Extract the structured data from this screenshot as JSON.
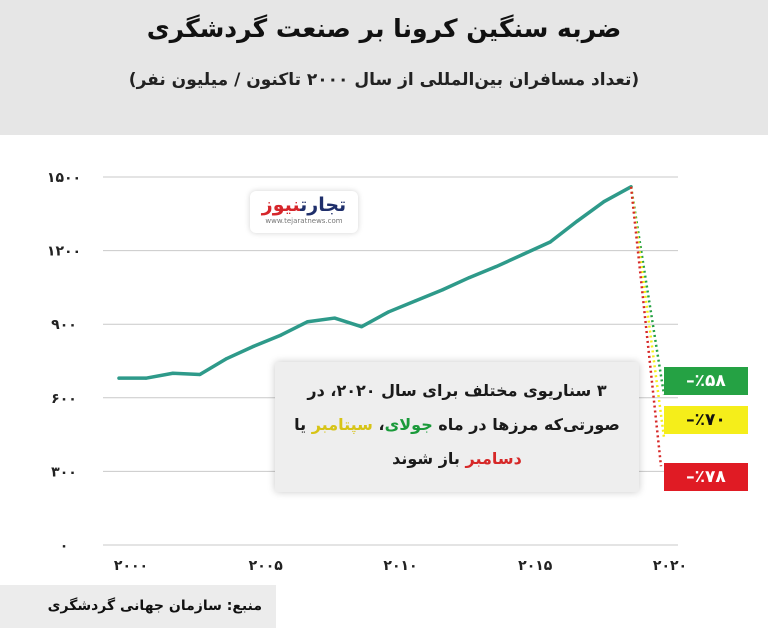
{
  "title": "ضربه سنگین کرونا بر صنعت گردشگری",
  "subtitle": "(تعداد مسافران بین‌المللی از سال ۲۰۰۰ تاکنون / میلیون نفر)",
  "logo": {
    "main_a": "تجارت",
    "main_b": "نیوز",
    "sub": "www.tejaratnews.com"
  },
  "note": {
    "line1": "۳ سناریوی مختلف برای سال ۲۰۲۰، در",
    "line2_a": "صورتی‌که مرزها در ماه ",
    "july": "جولای",
    "comma": "، ",
    "september": "سپتامبر",
    "line2_b": " یا",
    "december": "دسامبر",
    "line3_b": " باز شوند"
  },
  "badges": {
    "green": "٪۵۸–",
    "yellow": "٪۷۰–",
    "red": "٪۷۸–"
  },
  "source": "منبع: سازمان جهانی گردشگری",
  "colors": {
    "line": "#2e9a8a",
    "green": "#25a244",
    "yellow": "#f5ee1a",
    "red": "#d62828"
  },
  "chart_data": {
    "type": "line",
    "title": "ضربه سنگین کرونا بر صنعت گردشگری",
    "subtitle": "(تعداد مسافران بین‌المللی از سال ۲۰۰۰ تاکنون / میلیون نفر)",
    "xlim": [
      2000,
      2020
    ],
    "ylim": [
      0,
      1500
    ],
    "yticks": [
      0,
      300,
      600,
      900,
      1200,
      1500
    ],
    "ytick_labels": [
      "۰",
      "۳۰۰",
      "۶۰۰",
      "۹۰۰",
      "۱۲۰۰",
      "۱۵۰۰"
    ],
    "xticks": [
      2000,
      2005,
      2010,
      2015,
      2020
    ],
    "xtick_labels": [
      "۲۰۰۰",
      "۲۰۰۵",
      "۲۰۱۰",
      "۲۰۱۵",
      "۲۰۲۰"
    ],
    "grid": true,
    "x": [
      2000,
      2001,
      2002,
      2003,
      2004,
      2005,
      2006,
      2007,
      2008,
      2009,
      2010,
      2011,
      2012,
      2013,
      2014,
      2015,
      2016,
      2017,
      2018,
      2019
    ],
    "values": [
      680,
      680,
      700,
      695,
      760,
      810,
      855,
      910,
      925,
      890,
      950,
      995,
      1040,
      1090,
      1135,
      1185,
      1235,
      1320,
      1400,
      1460
    ],
    "scenarios": [
      {
        "label": "٪۵۸–",
        "color": "#25a244",
        "value": 613
      },
      {
        "label": "٪۷۰–",
        "color": "#f5ee1a",
        "value": 438
      },
      {
        "label": "٪۷۸–",
        "color": "#d62828",
        "value": 321
      }
    ]
  }
}
